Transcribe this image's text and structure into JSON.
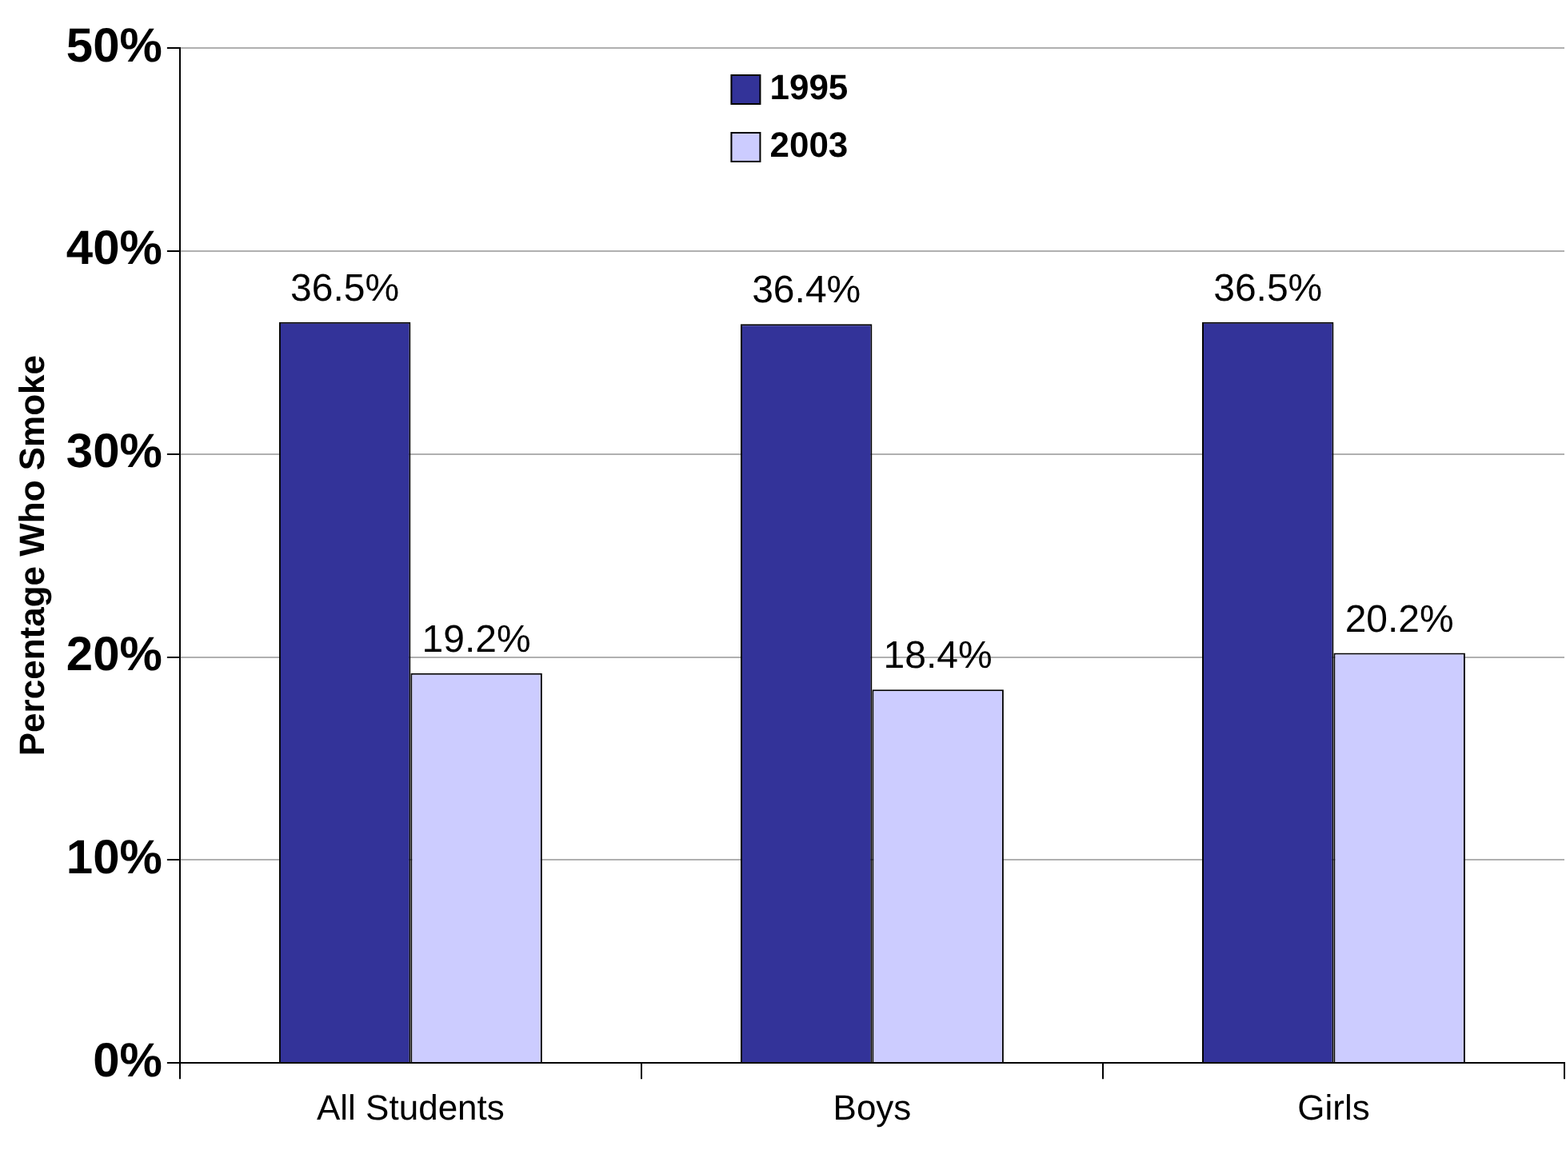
{
  "chart_data": {
    "type": "bar",
    "ylabel": "Percentage Who Smoke",
    "categories": [
      "All Students",
      "Boys",
      "Girls"
    ],
    "series": [
      {
        "name": "1995",
        "color": "#333399",
        "values": [
          36.5,
          36.4,
          36.5
        ],
        "value_labels": [
          "36.5%",
          "36.4%",
          "36.5%"
        ]
      },
      {
        "name": "2003",
        "color": "#ccccff",
        "values": [
          19.2,
          18.4,
          20.2
        ],
        "value_labels": [
          "19.2%",
          "18.4%",
          "20.2%"
        ]
      }
    ],
    "ylim": [
      0,
      50
    ],
    "yticks": [
      {
        "value": 0,
        "label": "0%"
      },
      {
        "value": 10,
        "label": "10%"
      },
      {
        "value": 20,
        "label": "20%"
      },
      {
        "value": 30,
        "label": "30%"
      },
      {
        "value": 40,
        "label": "40%"
      },
      {
        "value": 50,
        "label": "50%"
      }
    ],
    "grid": "y",
    "legend": "top"
  }
}
